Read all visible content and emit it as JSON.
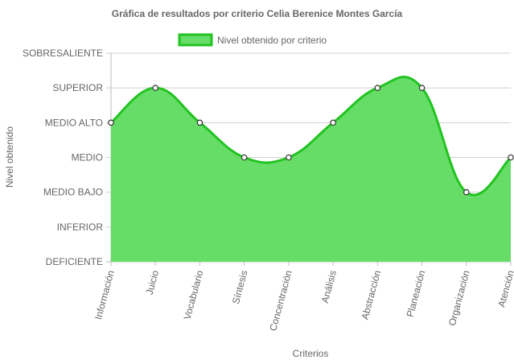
{
  "chart_data": {
    "type": "area",
    "title": "Gráfica de resultados por criterio Celia Berenice Montes García",
    "xlabel": "Criterios",
    "ylabel": "Nivel obtenido",
    "y_levels": [
      "DEFICIENTE",
      "INFERIOR",
      "MEDIO BAJO",
      "MEDIO",
      "MEDIO ALTO",
      "SUPERIOR",
      "SOBRESALIENTE"
    ],
    "categories": [
      "Información",
      "Juicio",
      "Vocabulario",
      "Síntesis",
      "Concentración",
      "Análisis",
      "Abstracción",
      "Planeación",
      "Organización",
      "Atención"
    ],
    "series": [
      {
        "name": "Nivel obtenido por criterio",
        "values": [
          "MEDIO ALTO",
          "SUPERIOR",
          "MEDIO ALTO",
          "MEDIO",
          "MEDIO",
          "MEDIO ALTO",
          "SUPERIOR",
          "SUPERIOR",
          "MEDIO BAJO",
          "MEDIO"
        ],
        "fill_color": "#66dd66",
        "line_color": "#22c322"
      }
    ],
    "grid": true,
    "legend_position": "top"
  }
}
